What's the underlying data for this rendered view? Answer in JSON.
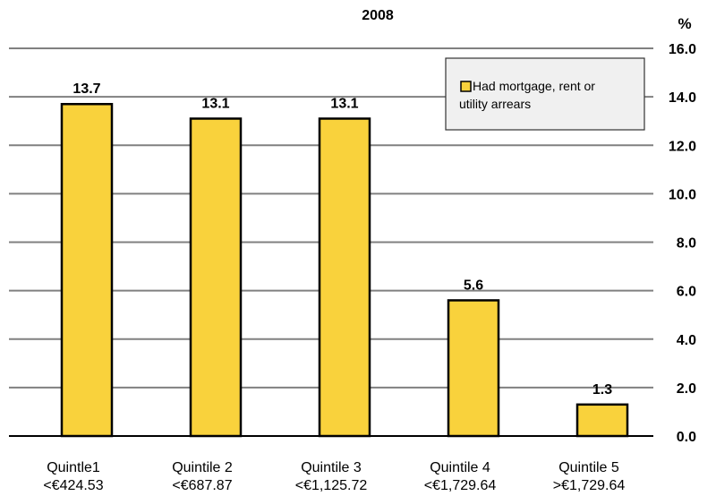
{
  "chart_data": {
    "type": "bar",
    "title": "2008",
    "unit": "%",
    "categories": [
      [
        "Quintle1",
        "<€424.53"
      ],
      [
        "Quintile 2",
        "<€687.87"
      ],
      [
        "Quintile 3",
        "<€1,125.72"
      ],
      [
        "Quintile 4",
        "<€1,729.64"
      ],
      [
        "Quintile 5",
        ">€1,729.64"
      ]
    ],
    "series": [
      {
        "name": "Had mortgage, rent or utility arrears",
        "values": [
          13.7,
          13.1,
          13.1,
          5.6,
          1.3
        ],
        "data_labels": [
          "13.7",
          "13.1",
          "13.1",
          "5.6",
          "1.3"
        ],
        "color": "#f9d23c"
      }
    ],
    "ylim": [
      0,
      16
    ],
    "yticks": [
      "0.0",
      "2.0",
      "4.0",
      "6.0",
      "8.0",
      "10.0",
      "12.0",
      "14.0",
      "16.0"
    ],
    "ytick_values": [
      0,
      2,
      4,
      6,
      8,
      10,
      12,
      14,
      16
    ],
    "y_axis_position": "right",
    "grid": true,
    "legend_position": "top-right",
    "legend_lines": [
      "Had mortgage, rent or",
      "utility arrears"
    ]
  },
  "colors": {
    "bar": "#f9d23c",
    "grid": "#808080",
    "legend_bg": "#f0f0f0"
  }
}
